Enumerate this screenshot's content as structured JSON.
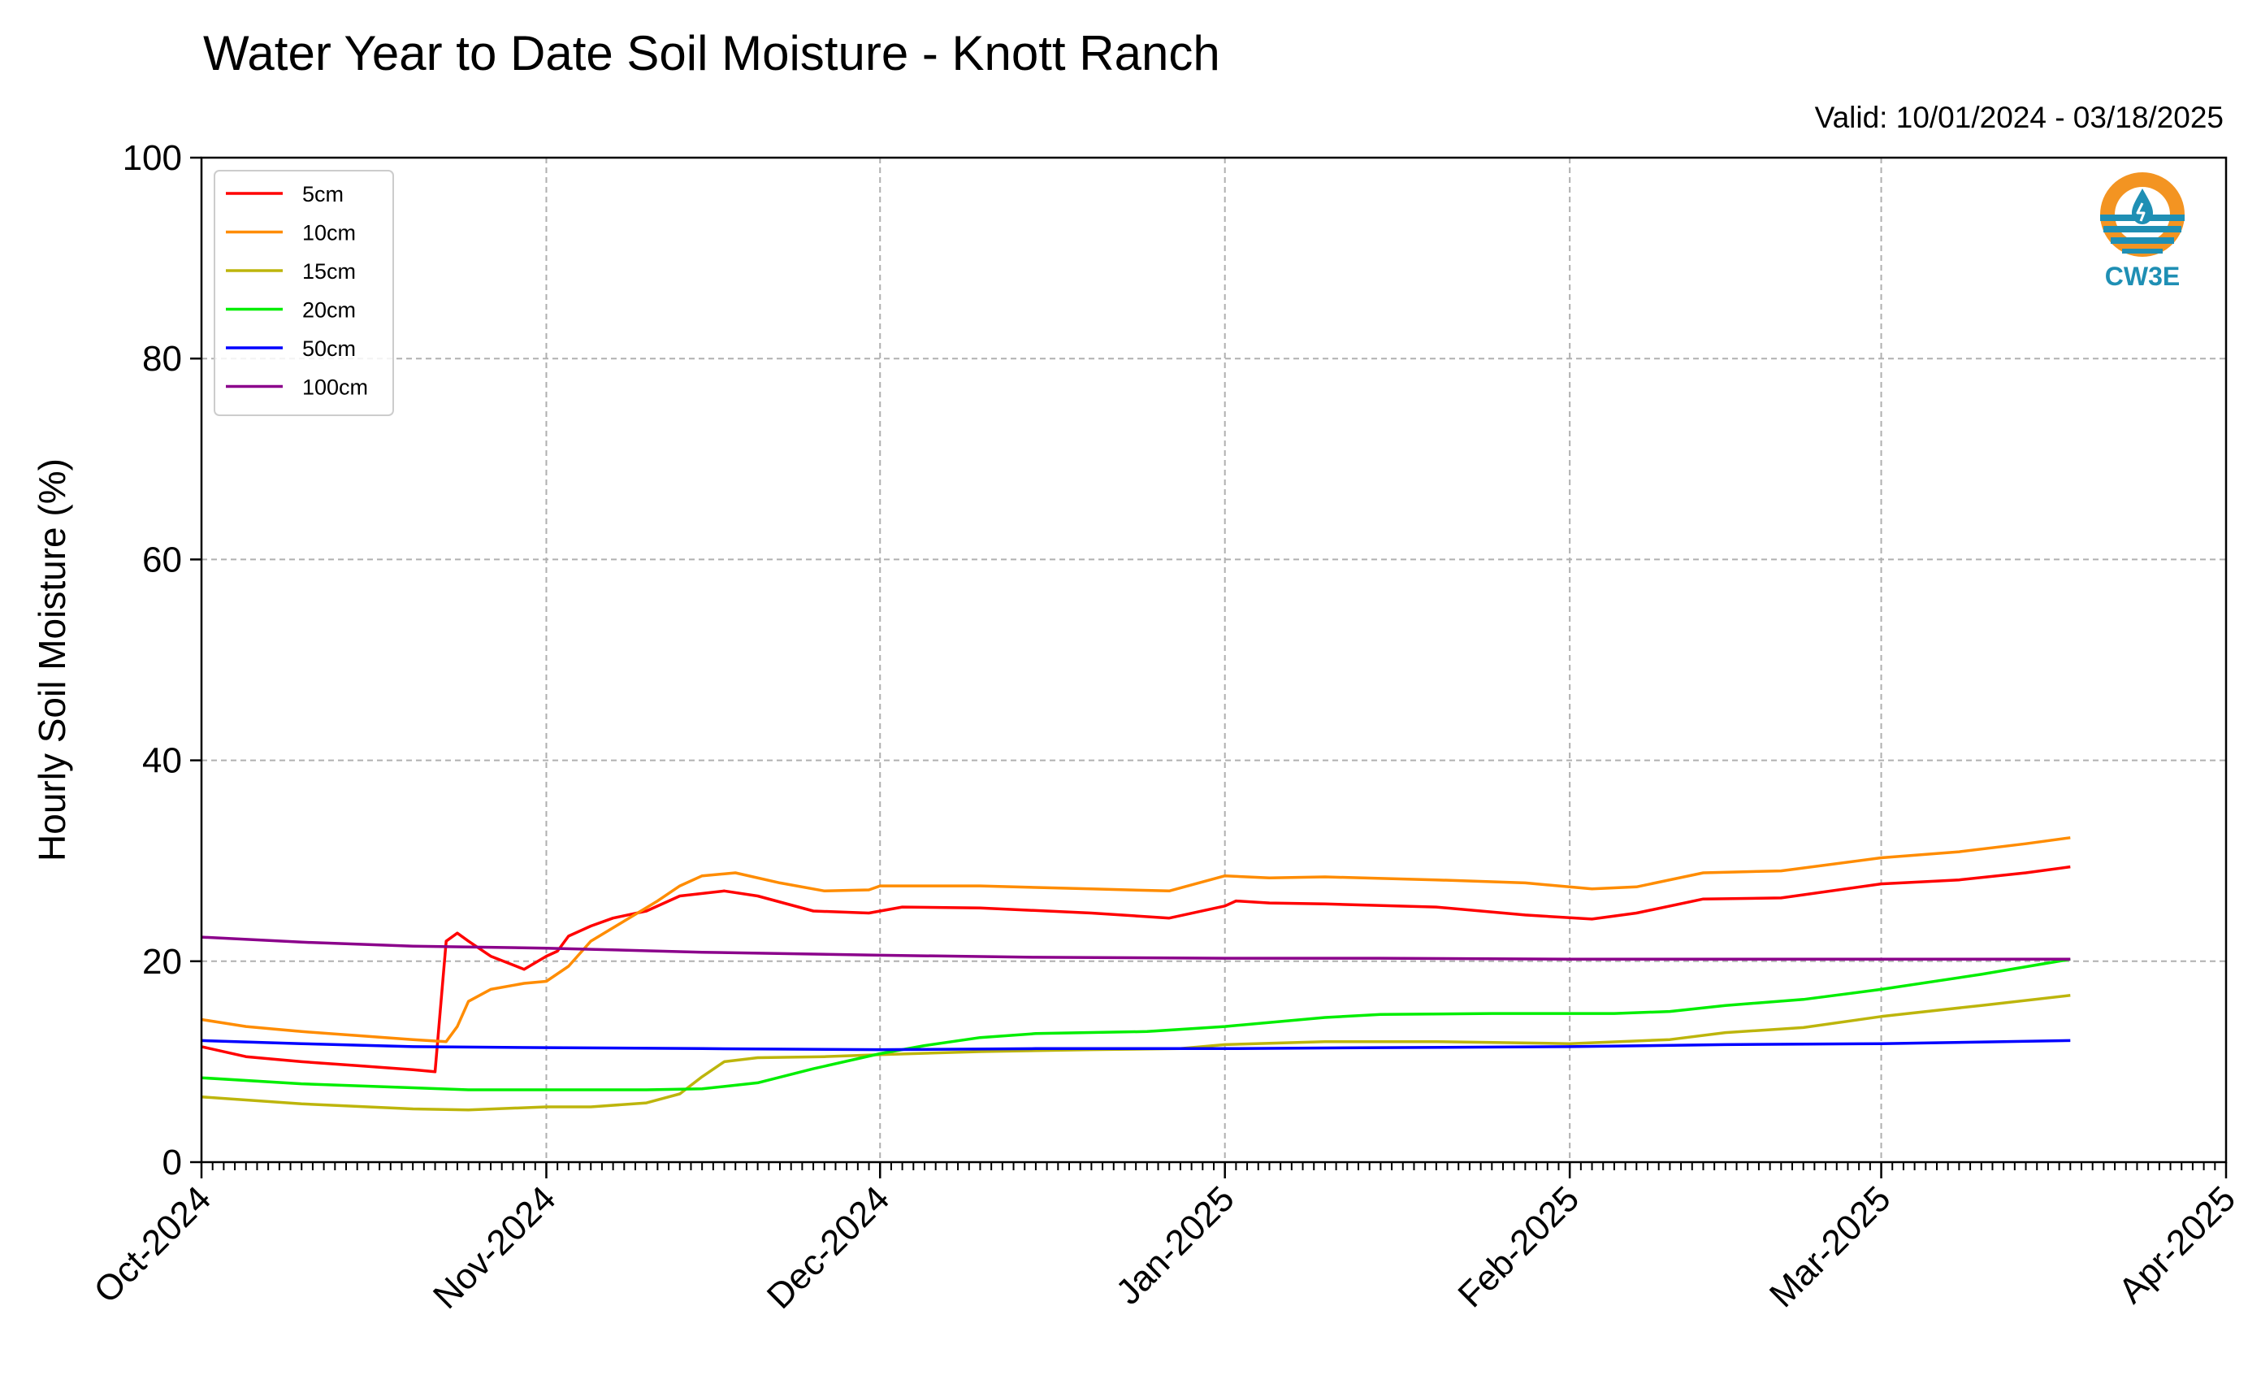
{
  "header": {
    "title": "Water Year to Date Soil Moisture - Knott Ranch",
    "valid": "Valid: 10/01/2024 - 03/18/2025"
  },
  "logo": {
    "text": "CW3E",
    "icon": "water-drop-logo-icon",
    "colors": {
      "sun": "#f39422",
      "water": "#1f8fb4"
    }
  },
  "chart_data": {
    "type": "line",
    "title": "Water Year to Date Soil Moisture - Knott Ranch",
    "subtitle": "Valid: 10/01/2024 - 03/18/2025",
    "xlabel": "",
    "ylabel": "Hourly Soil Moisture (%)",
    "xlim": [
      "2024-10-01",
      "2025-04-01"
    ],
    "ylim": [
      0,
      100
    ],
    "yticks": [
      0,
      20,
      40,
      60,
      80,
      100
    ],
    "xticks": [
      {
        "date": "2024-10-01",
        "label": "Oct-2024"
      },
      {
        "date": "2024-11-01",
        "label": "Nov-2024"
      },
      {
        "date": "2024-12-01",
        "label": "Dec-2024"
      },
      {
        "date": "2025-01-01",
        "label": "Jan-2025"
      },
      {
        "date": "2025-02-01",
        "label": "Feb-2025"
      },
      {
        "date": "2025-03-01",
        "label": "Mar-2025"
      },
      {
        "date": "2025-04-01",
        "label": "Apr-2025"
      }
    ],
    "grid": true,
    "legend_position": "top-left",
    "series": [
      {
        "name": "5cm",
        "color": "#ff0000",
        "points": [
          [
            "2024-10-01",
            11.5
          ],
          [
            "2024-10-05",
            10.5
          ],
          [
            "2024-10-10",
            10.0
          ],
          [
            "2024-10-15",
            9.6
          ],
          [
            "2024-10-20",
            9.2
          ],
          [
            "2024-10-22",
            9.0
          ],
          [
            "2024-10-23",
            22.0
          ],
          [
            "2024-10-24",
            22.8
          ],
          [
            "2024-10-25",
            22.0
          ],
          [
            "2024-10-27",
            20.5
          ],
          [
            "2024-10-30",
            19.2
          ],
          [
            "2024-11-01",
            20.5
          ],
          [
            "2024-11-02",
            21.0
          ],
          [
            "2024-11-03",
            22.5
          ],
          [
            "2024-11-05",
            23.5
          ],
          [
            "2024-11-07",
            24.3
          ],
          [
            "2024-11-10",
            25.0
          ],
          [
            "2024-11-13",
            26.5
          ],
          [
            "2024-11-17",
            27.0
          ],
          [
            "2024-11-20",
            26.5
          ],
          [
            "2024-11-25",
            25.0
          ],
          [
            "2024-11-30",
            24.8
          ],
          [
            "2024-12-03",
            25.4
          ],
          [
            "2024-12-10",
            25.3
          ],
          [
            "2024-12-20",
            24.8
          ],
          [
            "2024-12-27",
            24.3
          ],
          [
            "2025-01-01",
            25.5
          ],
          [
            "2025-01-02",
            26.0
          ],
          [
            "2025-01-05",
            25.8
          ],
          [
            "2025-01-10",
            25.7
          ],
          [
            "2025-01-20",
            25.4
          ],
          [
            "2025-01-28",
            24.6
          ],
          [
            "2025-02-03",
            24.2
          ],
          [
            "2025-02-07",
            24.8
          ],
          [
            "2025-02-13",
            26.2
          ],
          [
            "2025-02-20",
            26.3
          ],
          [
            "2025-03-01",
            27.7
          ],
          [
            "2025-03-08",
            28.1
          ],
          [
            "2025-03-14",
            28.8
          ],
          [
            "2025-03-18",
            29.4
          ]
        ]
      },
      {
        "name": "10cm",
        "color": "#ff8c00",
        "points": [
          [
            "2024-10-01",
            14.2
          ],
          [
            "2024-10-05",
            13.5
          ],
          [
            "2024-10-10",
            13.0
          ],
          [
            "2024-10-15",
            12.6
          ],
          [
            "2024-10-20",
            12.2
          ],
          [
            "2024-10-23",
            12.0
          ],
          [
            "2024-10-24",
            13.5
          ],
          [
            "2024-10-25",
            16.0
          ],
          [
            "2024-10-27",
            17.2
          ],
          [
            "2024-10-30",
            17.8
          ],
          [
            "2024-11-01",
            18.0
          ],
          [
            "2024-11-03",
            19.5
          ],
          [
            "2024-11-05",
            22.0
          ],
          [
            "2024-11-08",
            24.0
          ],
          [
            "2024-11-11",
            26.0
          ],
          [
            "2024-11-13",
            27.5
          ],
          [
            "2024-11-15",
            28.5
          ],
          [
            "2024-11-18",
            28.8
          ],
          [
            "2024-11-22",
            27.8
          ],
          [
            "2024-11-26",
            27.0
          ],
          [
            "2024-11-30",
            27.1
          ],
          [
            "2024-12-01",
            27.5
          ],
          [
            "2024-12-10",
            27.5
          ],
          [
            "2024-12-20",
            27.2
          ],
          [
            "2024-12-27",
            27.0
          ],
          [
            "2025-01-01",
            28.5
          ],
          [
            "2025-01-05",
            28.3
          ],
          [
            "2025-01-10",
            28.4
          ],
          [
            "2025-01-20",
            28.1
          ],
          [
            "2025-01-28",
            27.8
          ],
          [
            "2025-02-03",
            27.2
          ],
          [
            "2025-02-07",
            27.4
          ],
          [
            "2025-02-13",
            28.8
          ],
          [
            "2025-02-20",
            29.0
          ],
          [
            "2025-03-01",
            30.3
          ],
          [
            "2025-03-08",
            30.9
          ],
          [
            "2025-03-14",
            31.7
          ],
          [
            "2025-03-18",
            32.3
          ]
        ]
      },
      {
        "name": "15cm",
        "color": "#bdb50c",
        "points": [
          [
            "2024-10-01",
            6.5
          ],
          [
            "2024-10-10",
            5.8
          ],
          [
            "2024-10-20",
            5.3
          ],
          [
            "2024-10-25",
            5.2
          ],
          [
            "2024-11-01",
            5.5
          ],
          [
            "2024-11-05",
            5.5
          ],
          [
            "2024-11-10",
            5.9
          ],
          [
            "2024-11-13",
            6.8
          ],
          [
            "2024-11-15",
            8.5
          ],
          [
            "2024-11-17",
            10.0
          ],
          [
            "2024-11-20",
            10.4
          ],
          [
            "2024-11-26",
            10.5
          ],
          [
            "2024-12-01",
            10.7
          ],
          [
            "2024-12-10",
            11.0
          ],
          [
            "2024-12-20",
            11.2
          ],
          [
            "2024-12-28",
            11.3
          ],
          [
            "2025-01-01",
            11.7
          ],
          [
            "2025-01-10",
            12.0
          ],
          [
            "2025-01-20",
            12.0
          ],
          [
            "2025-02-01",
            11.8
          ],
          [
            "2025-02-10",
            12.2
          ],
          [
            "2025-02-15",
            12.9
          ],
          [
            "2025-02-22",
            13.4
          ],
          [
            "2025-03-01",
            14.5
          ],
          [
            "2025-03-10",
            15.6
          ],
          [
            "2025-03-18",
            16.6
          ]
        ]
      },
      {
        "name": "20cm",
        "color": "#00ee00",
        "points": [
          [
            "2024-10-01",
            8.4
          ],
          [
            "2024-10-10",
            7.8
          ],
          [
            "2024-10-20",
            7.4
          ],
          [
            "2024-10-25",
            7.2
          ],
          [
            "2024-11-01",
            7.2
          ],
          [
            "2024-11-10",
            7.2
          ],
          [
            "2024-11-15",
            7.3
          ],
          [
            "2024-11-20",
            7.9
          ],
          [
            "2024-11-25",
            9.3
          ],
          [
            "2024-12-01",
            10.8
          ],
          [
            "2024-12-05",
            11.6
          ],
          [
            "2024-12-10",
            12.4
          ],
          [
            "2024-12-15",
            12.8
          ],
          [
            "2024-12-25",
            13.0
          ],
          [
            "2025-01-01",
            13.5
          ],
          [
            "2025-01-10",
            14.4
          ],
          [
            "2025-01-15",
            14.7
          ],
          [
            "2025-01-25",
            14.8
          ],
          [
            "2025-02-05",
            14.8
          ],
          [
            "2025-02-10",
            15.0
          ],
          [
            "2025-02-15",
            15.6
          ],
          [
            "2025-02-22",
            16.2
          ],
          [
            "2025-03-01",
            17.2
          ],
          [
            "2025-03-10",
            18.7
          ],
          [
            "2025-03-18",
            20.2
          ]
        ]
      },
      {
        "name": "50cm",
        "color": "#0000ff",
        "points": [
          [
            "2024-10-01",
            12.1
          ],
          [
            "2024-10-10",
            11.8
          ],
          [
            "2024-10-20",
            11.5
          ],
          [
            "2024-11-01",
            11.4
          ],
          [
            "2024-11-15",
            11.3
          ],
          [
            "2024-12-01",
            11.2
          ],
          [
            "2024-12-15",
            11.3
          ],
          [
            "2025-01-01",
            11.3
          ],
          [
            "2025-01-15",
            11.4
          ],
          [
            "2025-02-01",
            11.5
          ],
          [
            "2025-02-15",
            11.7
          ],
          [
            "2025-03-01",
            11.8
          ],
          [
            "2025-03-18",
            12.1
          ]
        ]
      },
      {
        "name": "100cm",
        "color": "#8b008b",
        "points": [
          [
            "2024-10-01",
            22.4
          ],
          [
            "2024-10-10",
            21.9
          ],
          [
            "2024-10-20",
            21.5
          ],
          [
            "2024-11-01",
            21.3
          ],
          [
            "2024-11-15",
            20.9
          ],
          [
            "2024-12-01",
            20.6
          ],
          [
            "2024-12-15",
            20.4
          ],
          [
            "2025-01-01",
            20.3
          ],
          [
            "2025-01-15",
            20.3
          ],
          [
            "2025-02-01",
            20.2
          ],
          [
            "2025-02-15",
            20.2
          ],
          [
            "2025-03-01",
            20.2
          ],
          [
            "2025-03-18",
            20.2
          ]
        ]
      }
    ]
  }
}
